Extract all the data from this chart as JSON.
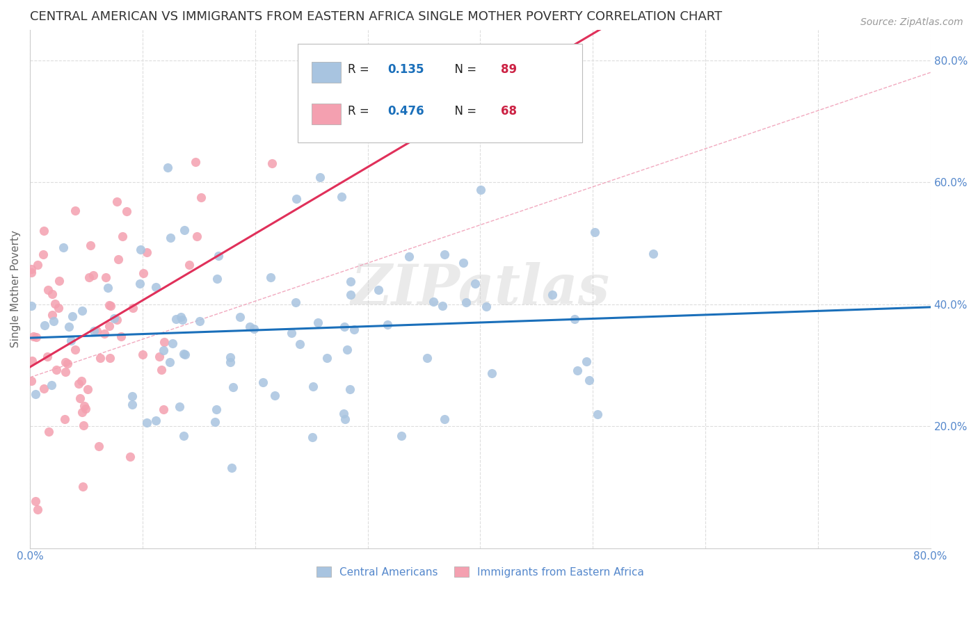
{
  "title": "CENTRAL AMERICAN VS IMMIGRANTS FROM EASTERN AFRICA SINGLE MOTHER POVERTY CORRELATION CHART",
  "source": "Source: ZipAtlas.com",
  "ylabel": "Single Mother Poverty",
  "xlim": [
    0.0,
    0.8
  ],
  "ylim": [
    0.0,
    0.85
  ],
  "xtick_pos": [
    0.0,
    0.1,
    0.2,
    0.3,
    0.4,
    0.5,
    0.6,
    0.7,
    0.8
  ],
  "xtick_labels": [
    "0.0%",
    "",
    "",
    "",
    "",
    "",
    "",
    "",
    "80.0%"
  ],
  "ytick_positions_right": [
    0.2,
    0.4,
    0.6,
    0.8
  ],
  "ytick_labels_right": [
    "20.0%",
    "40.0%",
    "60.0%",
    "80.0%"
  ],
  "blue_R": 0.135,
  "blue_N": 89,
  "pink_R": 0.476,
  "pink_N": 68,
  "blue_color": "#a8c4e0",
  "pink_color": "#f4a0b0",
  "blue_line_color": "#1a6fba",
  "pink_line_color": "#e0305a",
  "blue_legend_label": "Central Americans",
  "pink_legend_label": "Immigrants from Eastern Africa",
  "watermark": "ZIPatlas",
  "background_color": "#ffffff",
  "grid_color": "#dddddd",
  "title_color": "#333333",
  "source_color": "#999999",
  "axis_color": "#5588cc",
  "legend_text_color": "#222222",
  "legend_val_color": "#1a6fba",
  "legend_N_val_color": "#cc2244",
  "seed_blue": 42,
  "seed_pink": 77
}
